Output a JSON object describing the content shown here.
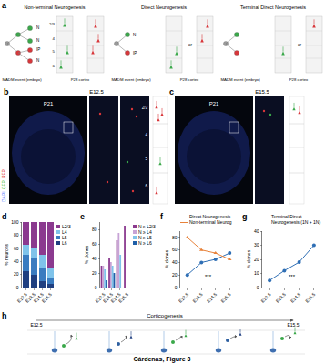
{
  "figure": {
    "caption": "Cárdenas, Figure 3",
    "panel_letters": [
      "a",
      "b",
      "c",
      "d",
      "e",
      "f",
      "g",
      "h"
    ],
    "layers": [
      "2/3",
      "4",
      "5",
      "6"
    ],
    "a": {
      "panels": [
        {
          "title": "Non-terminal Neurogenesis",
          "labels": [
            "N",
            "N",
            "IP",
            "N"
          ]
        },
        {
          "title": "Direct Neurogenesis",
          "labels": [
            "N",
            "IP",
            "or"
          ]
        },
        {
          "title": "Terminal Direct Neurogenesis",
          "labels": [
            "or"
          ]
        }
      ],
      "bottom_labels": [
        "MADM event (embryo)",
        "P28 cortex"
      ]
    },
    "b": {
      "stage": "E12.5",
      "age": "P21",
      "stains": [
        {
          "text": "DAPI",
          "color": "#5a7cff"
        },
        {
          "text": "GFP",
          "color": "#3fbf3f"
        },
        {
          "text": "RFP",
          "color": "#e03030"
        }
      ]
    },
    "c": {
      "stage": "E15.5",
      "age": "P21"
    },
    "h": {
      "title": "Corticogenesis",
      "start": "E12.5",
      "end": "E15.5"
    }
  },
  "chart_data": [
    {
      "type": "bar",
      "stacked": true,
      "categories": [
        "E12.5",
        "E13.5",
        "E14.5",
        "E15.5"
      ],
      "y_label": "% neurons",
      "ylim": [
        0,
        100
      ],
      "yticks": [
        0,
        20,
        40,
        60,
        80,
        100
      ],
      "legend": "right",
      "series": [
        {
          "name": "L2/3",
          "color": "#8b3a8f",
          "values": [
            35,
            40,
            50,
            70
          ]
        },
        {
          "name": "L4",
          "color": "#7fc3ea",
          "values": [
            15,
            15,
            20,
            15
          ]
        },
        {
          "name": "L5",
          "color": "#3a7cc0",
          "values": [
            25,
            25,
            20,
            10
          ]
        },
        {
          "name": "L6",
          "color": "#1f3f80",
          "values": [
            25,
            20,
            10,
            5
          ]
        }
      ]
    },
    {
      "type": "bar",
      "categories": [
        "E12.5",
        "E13.5",
        "E14.5",
        "E15.5"
      ],
      "y_label": "% clones",
      "ylim": [
        0,
        90
      ],
      "yticks": [
        0,
        20,
        40,
        60,
        80
      ],
      "legend": "right",
      "series": [
        {
          "name": "N ≥ L2/3",
          "color": "#8b3a8f",
          "values": [
            30,
            40,
            65,
            85
          ]
        },
        {
          "name": "N ≥ L4",
          "color": "#c7a3d6",
          "values": [
            30,
            35,
            75,
            0
          ]
        },
        {
          "name": "N ≥ L5",
          "color": "#7fc3ea",
          "values": [
            25,
            30,
            45,
            0
          ]
        },
        {
          "name": "N ≥ L6",
          "color": "#1f5fa8",
          "values": [
            10,
            20,
            0,
            0
          ]
        }
      ]
    },
    {
      "type": "line",
      "categories": [
        "E12.5",
        "E13.5",
        "E14.5",
        "E15.5"
      ],
      "y_label": "% clones",
      "ylim": [
        0,
        90
      ],
      "yticks": [
        0,
        20,
        40,
        60,
        80
      ],
      "legend": "top",
      "annotations": [
        "***"
      ],
      "series": [
        {
          "name": "Direct Neurogenesis",
          "color": "#2f6fb5",
          "marker": "circle",
          "values": [
            20,
            40,
            45,
            55
          ]
        },
        {
          "name": "Non-terminal Neurog",
          "color": "#e8823a",
          "marker": "triangle",
          "values": [
            80,
            60,
            55,
            45
          ]
        }
      ]
    },
    {
      "type": "line",
      "categories": [
        "E12.5",
        "E13.5",
        "E14.5",
        "E15.5"
      ],
      "y_label": "% clones",
      "ylim": [
        0,
        40
      ],
      "yticks": [
        0,
        10,
        20,
        30,
        40
      ],
      "legend": "top",
      "annotations": [
        "***"
      ],
      "series": [
        {
          "name": "Terminal Direct\nNeurogenesis (1N + 1N)",
          "color": "#2f6fb5",
          "marker": "circle",
          "values": [
            5,
            12,
            18,
            30
          ]
        }
      ]
    }
  ]
}
